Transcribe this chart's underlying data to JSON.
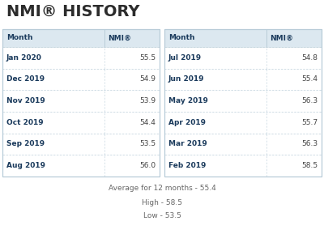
{
  "title": "NMI® HISTORY",
  "title_color": "#2c2c2c",
  "title_fontsize": 14,
  "background_color": "#ffffff",
  "border_color": "#b8ccd8",
  "header_bg": "#dce8f0",
  "row_bg": "#ffffff",
  "left_months": [
    "Jan 2020",
    "Dec 2019",
    "Nov 2019",
    "Oct 2019",
    "Sep 2019",
    "Aug 2019"
  ],
  "left_values": [
    "55.5",
    "54.9",
    "53.9",
    "54.4",
    "53.5",
    "56.0"
  ],
  "right_months": [
    "Jul 2019",
    "Jun 2019",
    "May 2019",
    "Apr 2019",
    "Mar 2019",
    "Feb 2019"
  ],
  "right_values": [
    "54.8",
    "55.4",
    "56.3",
    "55.7",
    "56.3",
    "58.5"
  ],
  "col_header_month": "Month",
  "col_header_nmi": "NMI®",
  "summary_avg": "Average for 12 months - 55.4",
  "summary_high": "High - 58.5",
  "summary_low": "Low - 53.5",
  "header_text_color": "#1a3a5c",
  "month_text_color": "#1a3a5c",
  "value_text_color": "#444444",
  "summary_text_color": "#666666"
}
